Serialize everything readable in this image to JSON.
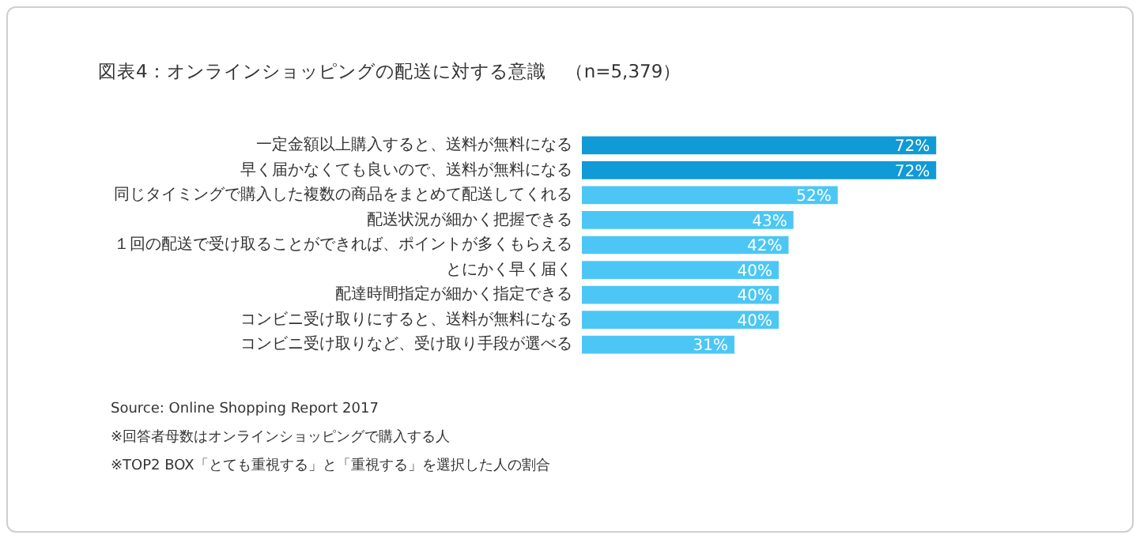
{
  "chart_data": {
    "type": "bar",
    "orientation": "horizontal",
    "title": "図表4：オンラインショッピングの配送に対する意識　（n=5,379）",
    "categories": [
      "一定金額以上購入すると、送料が無料になる",
      "早く届かなくても良いので、送料が無料になる",
      "同じタイミングで購入した複数の商品をまとめて配送してくれる",
      "配送状況が細かく把握できる",
      "１回の配送で受け取ることができれば、ポイントが多くもらえる",
      "とにかく早く届く",
      "配達時間指定が細かく指定できる",
      "コンビニ受け取りにすると、送料が無料になる",
      "コンビニ受け取りなど、受け取り手段が選べる"
    ],
    "values": [
      72,
      72,
      52,
      43,
      42,
      40,
      40,
      40,
      31
    ],
    "value_labels": [
      "72%",
      "72%",
      "52%",
      "43%",
      "42%",
      "40%",
      "40%",
      "40%",
      "31%"
    ],
    "colors": [
      "#109ad6",
      "#109ad6",
      "#4cc7f5",
      "#4cc7f5",
      "#4cc7f5",
      "#4cc7f5",
      "#4cc7f5",
      "#4cc7f5",
      "#4cc7f5"
    ],
    "tick_labels": "y",
    "grid": false,
    "legend": false,
    "annotations": [
      "Source: Online Shopping Report  2017",
      "※回答者母数はオンラインショッピングで購入する人",
      "※TOP2 BOX「とても重視する」と「重視する」を選択した人の割合"
    ]
  }
}
